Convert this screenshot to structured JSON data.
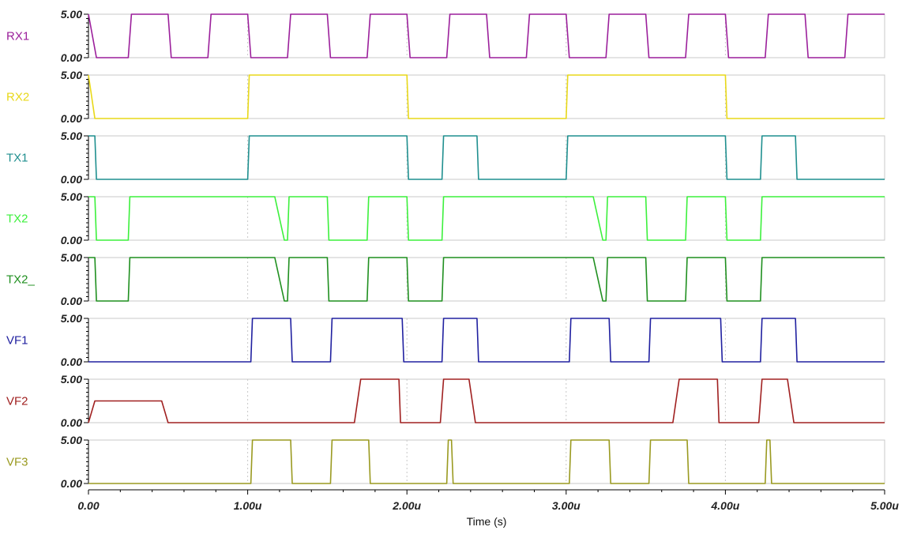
{
  "chart_data": {
    "type": "line",
    "xlabel": "Time (s)",
    "xlim": [
      0,
      5.0
    ],
    "x_unit": "u",
    "x_ticks": [
      "0.00",
      "1.00u",
      "2.00u",
      "3.00u",
      "4.00u",
      "5.00u"
    ],
    "y_ticks": [
      "0.00",
      "5.00"
    ],
    "ylim": [
      0,
      5
    ],
    "grid": "vertical dotted at major ticks",
    "series": [
      {
        "name": "RX1",
        "color": "#9b1f9b",
        "points": [
          [
            0,
            5
          ],
          [
            0.05,
            0
          ],
          [
            0.25,
            0
          ],
          [
            0.27,
            5
          ],
          [
            0.5,
            5
          ],
          [
            0.52,
            0
          ],
          [
            0.75,
            0
          ],
          [
            0.77,
            5
          ],
          [
            1.0,
            5
          ],
          [
            1.02,
            0
          ],
          [
            1.25,
            0
          ],
          [
            1.27,
            5
          ],
          [
            1.5,
            5
          ],
          [
            1.52,
            0
          ],
          [
            1.75,
            0
          ],
          [
            1.77,
            5
          ],
          [
            2.0,
            5
          ],
          [
            2.02,
            0
          ],
          [
            2.25,
            0
          ],
          [
            2.27,
            5
          ],
          [
            2.5,
            5
          ],
          [
            2.52,
            0
          ],
          [
            2.75,
            0
          ],
          [
            2.77,
            5
          ],
          [
            3.0,
            5
          ],
          [
            3.02,
            0
          ],
          [
            3.25,
            0
          ],
          [
            3.27,
            5
          ],
          [
            3.5,
            5
          ],
          [
            3.52,
            0
          ],
          [
            3.75,
            0
          ],
          [
            3.77,
            5
          ],
          [
            4.0,
            5
          ],
          [
            4.02,
            0
          ],
          [
            4.25,
            0
          ],
          [
            4.27,
            5
          ],
          [
            4.5,
            5
          ],
          [
            4.52,
            0
          ],
          [
            4.75,
            0
          ],
          [
            4.77,
            5
          ],
          [
            5.0,
            5
          ]
        ]
      },
      {
        "name": "RX2",
        "color": "#e8d818",
        "points": [
          [
            0,
            5
          ],
          [
            0.04,
            0
          ],
          [
            1.0,
            0
          ],
          [
            1.01,
            5
          ],
          [
            2.0,
            5
          ],
          [
            2.01,
            0
          ],
          [
            3.0,
            0
          ],
          [
            3.01,
            5
          ],
          [
            4.0,
            5
          ],
          [
            4.01,
            0
          ],
          [
            5.0,
            0
          ]
        ]
      },
      {
        "name": "TX1",
        "color": "#1f8f8f",
        "points": [
          [
            0,
            5
          ],
          [
            0.04,
            5
          ],
          [
            0.05,
            0
          ],
          [
            1.0,
            0
          ],
          [
            1.01,
            5
          ],
          [
            2.0,
            5
          ],
          [
            2.01,
            0
          ],
          [
            2.22,
            0
          ],
          [
            2.23,
            5
          ],
          [
            2.44,
            5
          ],
          [
            2.45,
            0
          ],
          [
            3.0,
            0
          ],
          [
            3.01,
            5
          ],
          [
            4.0,
            5
          ],
          [
            4.01,
            0
          ],
          [
            4.22,
            0
          ],
          [
            4.23,
            5
          ],
          [
            4.44,
            5
          ],
          [
            4.45,
            0
          ],
          [
            5.0,
            0
          ]
        ]
      },
      {
        "name": "TX2",
        "color": "#3cf03c",
        "points": [
          [
            0,
            5
          ],
          [
            0.04,
            5
          ],
          [
            0.05,
            0
          ],
          [
            0.25,
            0
          ],
          [
            0.26,
            5
          ],
          [
            1.17,
            5
          ],
          [
            1.23,
            0
          ],
          [
            1.25,
            0
          ],
          [
            1.26,
            5
          ],
          [
            1.5,
            5
          ],
          [
            1.51,
            0
          ],
          [
            1.75,
            0
          ],
          [
            1.76,
            5
          ],
          [
            2.0,
            5
          ],
          [
            2.01,
            0
          ],
          [
            2.22,
            0
          ],
          [
            2.23,
            5
          ],
          [
            3.17,
            5
          ],
          [
            3.23,
            0
          ],
          [
            3.25,
            0
          ],
          [
            3.26,
            5
          ],
          [
            3.5,
            5
          ],
          [
            3.51,
            0
          ],
          [
            3.75,
            0
          ],
          [
            3.76,
            5
          ],
          [
            4.0,
            5
          ],
          [
            4.01,
            0
          ],
          [
            4.22,
            0
          ],
          [
            4.23,
            5
          ],
          [
            5.0,
            5
          ]
        ]
      },
      {
        "name": "TX2_",
        "color": "#1f8f1f",
        "points": [
          [
            0,
            5
          ],
          [
            0.04,
            5
          ],
          [
            0.05,
            0
          ],
          [
            0.25,
            0
          ],
          [
            0.26,
            5
          ],
          [
            1.17,
            5
          ],
          [
            1.23,
            0
          ],
          [
            1.25,
            0
          ],
          [
            1.26,
            5
          ],
          [
            1.5,
            5
          ],
          [
            1.51,
            0
          ],
          [
            1.75,
            0
          ],
          [
            1.76,
            5
          ],
          [
            2.0,
            5
          ],
          [
            2.01,
            0
          ],
          [
            2.22,
            0
          ],
          [
            2.23,
            5
          ],
          [
            3.17,
            5
          ],
          [
            3.23,
            0
          ],
          [
            3.25,
            0
          ],
          [
            3.26,
            5
          ],
          [
            3.5,
            5
          ],
          [
            3.51,
            0
          ],
          [
            3.75,
            0
          ],
          [
            3.76,
            5
          ],
          [
            4.0,
            5
          ],
          [
            4.01,
            0
          ],
          [
            4.22,
            0
          ],
          [
            4.23,
            5
          ],
          [
            5.0,
            5
          ]
        ]
      },
      {
        "name": "VF1",
        "color": "#2020a0",
        "points": [
          [
            0,
            0
          ],
          [
            1.02,
            0
          ],
          [
            1.03,
            5
          ],
          [
            1.27,
            5
          ],
          [
            1.28,
            0
          ],
          [
            1.52,
            0
          ],
          [
            1.53,
            5
          ],
          [
            1.97,
            5
          ],
          [
            1.98,
            0
          ],
          [
            2.22,
            0
          ],
          [
            2.23,
            5
          ],
          [
            2.44,
            5
          ],
          [
            2.45,
            0
          ],
          [
            3.02,
            0
          ],
          [
            3.03,
            5
          ],
          [
            3.27,
            5
          ],
          [
            3.28,
            0
          ],
          [
            3.52,
            0
          ],
          [
            3.53,
            5
          ],
          [
            3.97,
            5
          ],
          [
            3.98,
            0
          ],
          [
            4.22,
            0
          ],
          [
            4.23,
            5
          ],
          [
            4.44,
            5
          ],
          [
            4.45,
            0
          ],
          [
            5.0,
            0
          ]
        ]
      },
      {
        "name": "VF2",
        "color": "#a02020",
        "points": [
          [
            0,
            0
          ],
          [
            0.04,
            2.5
          ],
          [
            0.46,
            2.5
          ],
          [
            0.5,
            0
          ],
          [
            1.67,
            0
          ],
          [
            1.71,
            5
          ],
          [
            1.95,
            5
          ],
          [
            1.96,
            0
          ],
          [
            2.21,
            0
          ],
          [
            2.23,
            5
          ],
          [
            2.39,
            5
          ],
          [
            2.43,
            0
          ],
          [
            3.67,
            0
          ],
          [
            3.71,
            5
          ],
          [
            3.95,
            5
          ],
          [
            3.96,
            0
          ],
          [
            4.21,
            0
          ],
          [
            4.23,
            5
          ],
          [
            4.39,
            5
          ],
          [
            4.43,
            0
          ],
          [
            5.0,
            0
          ]
        ]
      },
      {
        "name": "VF3",
        "color": "#9a9a20",
        "points": [
          [
            0,
            0
          ],
          [
            1.02,
            0
          ],
          [
            1.03,
            5
          ],
          [
            1.27,
            5
          ],
          [
            1.28,
            0
          ],
          [
            1.52,
            0
          ],
          [
            1.53,
            5
          ],
          [
            1.76,
            5
          ],
          [
            1.77,
            0
          ],
          [
            2.25,
            0
          ],
          [
            2.26,
            5
          ],
          [
            2.28,
            5
          ],
          [
            2.29,
            0
          ],
          [
            3.02,
            0
          ],
          [
            3.03,
            5
          ],
          [
            3.27,
            5
          ],
          [
            3.28,
            0
          ],
          [
            3.52,
            0
          ],
          [
            3.53,
            5
          ],
          [
            3.76,
            5
          ],
          [
            3.77,
            0
          ],
          [
            4.25,
            0
          ],
          [
            4.26,
            5
          ],
          [
            4.28,
            5
          ],
          [
            4.29,
            0
          ],
          [
            5.0,
            0
          ]
        ]
      }
    ]
  }
}
